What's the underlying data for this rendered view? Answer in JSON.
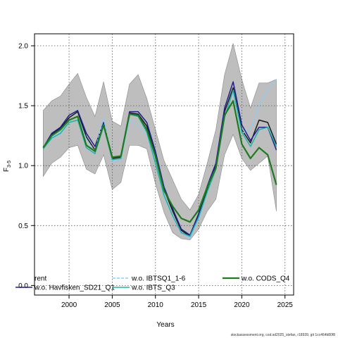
{
  "chart_data": {
    "type": "line",
    "xlabel": "Years",
    "ylabel": "F",
    "ylabel_subscript": "3-5",
    "xlim": [
      1996,
      2026
    ],
    "ylim": [
      -0.08,
      2.1
    ],
    "x_ticks": [
      2000,
      2005,
      2010,
      2015,
      2020,
      2025
    ],
    "y_ticks": [
      0.0,
      0.5,
      1.0,
      1.5,
      2.0
    ],
    "x_tick_labels": [
      "2000",
      "2005",
      "2010",
      "2015",
      "2020",
      "2025"
    ],
    "y_tick_labels": [
      "0.0",
      "0.5",
      "1.0",
      "1.5",
      "2.0"
    ],
    "grid": true,
    "x": [
      1997,
      1998,
      1999,
      2000,
      2001,
      2002,
      2003,
      2004,
      2005,
      2006,
      2007,
      2008,
      2009,
      2010,
      2011,
      2012,
      2013,
      2014,
      2015,
      2016,
      2017,
      2018,
      2019,
      2020,
      2021,
      2022,
      2023,
      2024
    ],
    "confidence_band": {
      "color": "#bebebe",
      "upper": [
        1.46,
        1.54,
        1.58,
        1.68,
        1.77,
        1.57,
        1.41,
        1.7,
        1.37,
        1.33,
        1.68,
        1.76,
        1.56,
        1.3,
        1.04,
        0.88,
        0.72,
        0.63,
        0.76,
        1.02,
        1.3,
        1.76,
        2.02,
        1.72,
        1.48,
        1.69,
        1.69,
        1.72
      ],
      "lower": [
        0.91,
        1.02,
        1.07,
        1.15,
        1.17,
        0.97,
        0.93,
        1.09,
        0.8,
        0.86,
        1.17,
        1.17,
        1.14,
        0.85,
        0.61,
        0.44,
        0.39,
        0.38,
        0.47,
        0.62,
        0.72,
        1.09,
        1.26,
        1.06,
        0.96,
        1.02,
        1.08,
        0.62
      ]
    },
    "series": [
      {
        "name": "rent",
        "legend_label": "rent",
        "color": "#1a1a1a",
        "style": "solid",
        "width": 1.5,
        "visible_line": false,
        "values": [
          1.15,
          1.26,
          1.31,
          1.4,
          1.45,
          1.24,
          1.13,
          1.34,
          1.06,
          1.07,
          1.44,
          1.43,
          1.33,
          1.09,
          0.8,
          0.62,
          0.46,
          0.41,
          0.58,
          0.8,
          1.0,
          1.45,
          1.65,
          1.3,
          1.19,
          1.38,
          1.36,
          1.18
        ]
      },
      {
        "name": "w.o. Havfisken_SD21_Q1",
        "legend_label": "w.o. Havfisken_SD21_Q1",
        "color": "#1f1f8f",
        "style": "solid",
        "width": 1.5,
        "values": [
          1.15,
          1.27,
          1.32,
          1.42,
          1.46,
          1.27,
          1.16,
          1.36,
          1.07,
          1.08,
          1.45,
          1.45,
          1.36,
          1.12,
          0.82,
          0.64,
          0.47,
          0.42,
          0.6,
          0.83,
          1.02,
          1.48,
          1.7,
          1.34,
          1.21,
          1.32,
          1.32,
          1.13
        ]
      },
      {
        "name": "w.o. IBTSQ1_1-6",
        "legend_label": "w.o. IBTSQ1_1-6",
        "color": "#87cefa",
        "style": "dashed",
        "width": 1.5,
        "values": [
          1.14,
          1.24,
          1.28,
          1.37,
          1.41,
          1.22,
          1.12,
          1.4,
          1.04,
          1.05,
          1.38,
          1.33,
          1.26,
          1.04,
          0.76,
          0.58,
          0.44,
          0.4,
          0.56,
          0.78,
          0.98,
          1.42,
          1.62,
          1.27,
          1.3,
          1.5,
          1.63,
          1.72
        ]
      },
      {
        "name": "w.o. IBTS_Q3",
        "legend_label": "w.o. IBTS_Q3",
        "color": "#20b2aa",
        "style": "solid",
        "width": 1.5,
        "values": [
          1.14,
          1.23,
          1.27,
          1.36,
          1.38,
          1.15,
          1.1,
          1.33,
          1.05,
          1.06,
          1.43,
          1.41,
          1.28,
          1.02,
          0.75,
          0.58,
          0.44,
          0.41,
          0.57,
          0.78,
          0.97,
          1.4,
          1.63,
          1.28,
          1.16,
          1.3,
          1.32,
          1.16
        ]
      },
      {
        "name": "w.o. CODS_Q4",
        "legend_label": "w.o. CODS_Q4",
        "color": "#1f7a1f",
        "style": "solid",
        "width": 2.2,
        "values": [
          1.15,
          1.25,
          1.3,
          1.38,
          1.41,
          1.17,
          1.12,
          1.34,
          1.07,
          1.08,
          1.43,
          1.42,
          1.3,
          1.08,
          0.79,
          0.66,
          0.56,
          0.53,
          0.63,
          0.82,
          0.98,
          1.42,
          1.54,
          1.18,
          1.06,
          1.15,
          1.09,
          0.84
        ]
      }
    ],
    "legend": {
      "placement": "bottom-left-inside",
      "columns": [
        [
          "rent",
          "w.o. Havfisken_SD21_Q1"
        ],
        [
          "w.o. IBTSQ1_1-6",
          "w.o. IBTS_Q3"
        ],
        [
          "w.o. CODS_Q4"
        ]
      ]
    }
  },
  "footer_text": "stockassessment.org, cod.sd2025_stefan, r18939, git 1cc464b80f8"
}
